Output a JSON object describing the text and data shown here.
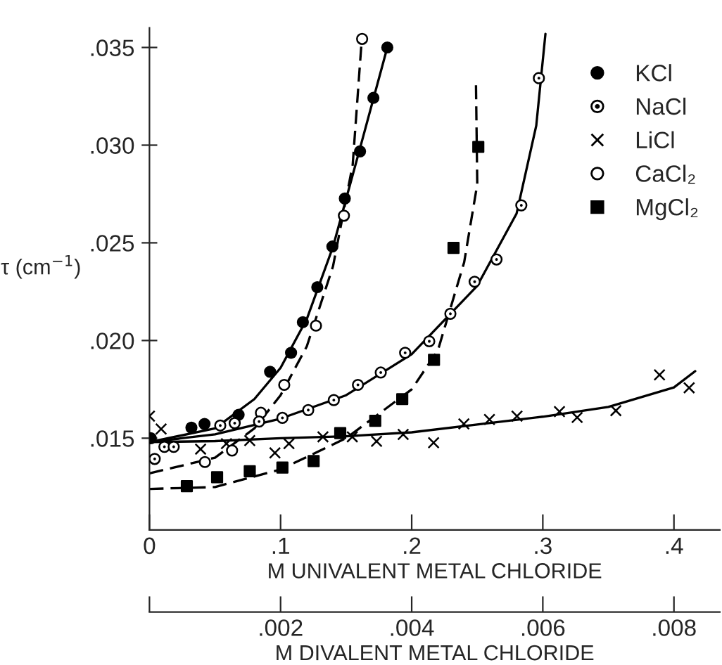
{
  "chart_data": {
    "type": "scatter",
    "xlabel": "M UNIVALENT METAL CHLORIDE",
    "ylabel": "τ (cm$^{−1}$)",
    "x2label": "M DIVALENT METAL CHLORIDE",
    "xlim": [
      0,
      0.435
    ],
    "xticks": [
      {
        "value": 0,
        "label": "0"
      },
      {
        "value": 0.1,
        "label": ".1"
      },
      {
        "value": 0.2,
        "label": ".2"
      },
      {
        "value": 0.3,
        "label": ".3"
      },
      {
        "value": 0.4,
        "label": ".4"
      }
    ],
    "x2lim": [
      0,
      0.0087
    ],
    "x2ticks": [
      {
        "value": 0,
        "label": null
      },
      {
        "value": 0.002,
        "label": ".002"
      },
      {
        "value": 0.004,
        "label": ".004"
      },
      {
        "value": 0.006,
        "label": ".006"
      },
      {
        "value": 0.008,
        "label": ".008"
      }
    ],
    "ylim": [
      0.0103,
      0.036
    ],
    "yticks": [
      {
        "value": 0.015,
        "label": ".015"
      },
      {
        "value": 0.02,
        "label": ".020"
      },
      {
        "value": 0.025,
        "label": ".025"
      },
      {
        "value": 0.03,
        "label": ".030"
      },
      {
        "value": 0.035,
        "label": ".035"
      }
    ],
    "legend": "top right",
    "grid": false,
    "series": [
      {
        "name": "KCl",
        "color": "#000000",
        "marker": "circle",
        "x": [
          0.001,
          0.032,
          0.042,
          0.068,
          0.092,
          0.108,
          0.117,
          0.128,
          0.1395,
          0.149,
          0.1606,
          0.1708,
          0.1814
        ],
        "values": [
          0.015,
          0.01554,
          0.01573,
          0.0162,
          0.0184,
          0.01937,
          0.02094,
          0.02273,
          0.02481,
          0.02727,
          0.02968,
          0.03242,
          0.035
        ]
      },
      {
        "name": "NaCl",
        "color": "#000000",
        "marker": "circle_dot",
        "x": [
          0.004,
          0.0114,
          0.0185,
          0.054,
          0.065,
          0.0836,
          0.1014,
          0.1211,
          0.1406,
          0.159,
          0.1764,
          0.195,
          0.2134,
          0.2295,
          0.248,
          0.2647,
          0.2836,
          0.297
        ],
        "values": [
          0.01394,
          0.01456,
          0.01456,
          0.01565,
          0.01577,
          0.01585,
          0.01604,
          0.01644,
          0.01695,
          0.01773,
          0.01836,
          0.01937,
          0.01996,
          0.02137,
          0.02301,
          0.02415,
          0.02692,
          0.03343
        ]
      },
      {
        "name": "LiCl",
        "color": "#000000",
        "marker": "cross",
        "x": [
          0,
          0.0089,
          0.039,
          0.0587,
          0.0765,
          0.0957,
          0.1064,
          0.1323,
          0.1547,
          0.1732,
          0.1935,
          0.2167,
          0.2398,
          0.2593,
          0.2803,
          0.3127,
          0.3262,
          0.3557,
          0.389,
          0.4116
        ],
        "values": [
          0.01613,
          0.01547,
          0.01444,
          0.01472,
          0.01488,
          0.01425,
          0.01472,
          0.01507,
          0.01507,
          0.01484,
          0.01519,
          0.01477,
          0.01573,
          0.01596,
          0.01613,
          0.01636,
          0.01606,
          0.01641,
          0.01824,
          0.01758
        ]
      },
      {
        "name": "CaCl₂",
        "color": "#000000",
        "marker": "circle_open",
        "x": [
          0.0423,
          0.063,
          0.085,
          0.1028,
          0.127,
          0.1483,
          0.1622
        ],
        "values": [
          0.01378,
          0.01437,
          0.0163,
          0.01773,
          0.02076,
          0.02639,
          0.03544
        ]
      },
      {
        "name": "MgCl₂",
        "color": "#000000",
        "marker": "square",
        "x": [
          0.0285,
          0.0516,
          0.0765,
          0.1014,
          0.1252,
          0.1455,
          0.1722,
          0.1928,
          0.217,
          0.2319,
          0.2508
        ],
        "values": [
          0.01254,
          0.013,
          0.01331,
          0.0135,
          0.01383,
          0.01526,
          0.01589,
          0.017,
          0.01901,
          0.02474,
          0.02991
        ]
      },
      {
        "type": "line",
        "color": "#000000",
        "line_style": "solid",
        "x": [
          0,
          0.05,
          0.08,
          0.1,
          0.12,
          0.14,
          0.16,
          0.1814
        ],
        "values": [
          0.0148,
          0.0155,
          0.017,
          0.0186,
          0.0211,
          0.0248,
          0.0297,
          0.035
        ]
      },
      {
        "type": "line",
        "color": "#000000",
        "line_style": "solid",
        "x": [
          0,
          0.05,
          0.1,
          0.15,
          0.2,
          0.25,
          0.28,
          0.295,
          0.302
        ],
        "values": [
          0.0148,
          0.0152,
          0.016,
          0.0172,
          0.0193,
          0.0228,
          0.0265,
          0.031,
          0.0357
        ]
      },
      {
        "type": "line",
        "color": "#000000",
        "line_style": "solid",
        "x": [
          0,
          0.05,
          0.1,
          0.15,
          0.2,
          0.25,
          0.3,
          0.35,
          0.4,
          0.4162
        ],
        "values": [
          0.0148,
          0.01485,
          0.015,
          0.0151,
          0.0153,
          0.0157,
          0.0161,
          0.0166,
          0.0176,
          0.01843
        ]
      },
      {
        "type": "line",
        "color": "#000000",
        "line_style": "dashed",
        "x": [
          0,
          0.05,
          0.08,
          0.1,
          0.12,
          0.14,
          0.155,
          0.162
        ],
        "values": [
          0.0132,
          0.014,
          0.0155,
          0.0172,
          0.0197,
          0.0238,
          0.029,
          0.0355
        ]
      },
      {
        "type": "line",
        "color": "#000000",
        "line_style": "dashed",
        "x": [
          0,
          0.05,
          0.1,
          0.15,
          0.2,
          0.22,
          0.24,
          0.25,
          0.249
        ],
        "values": [
          0.0124,
          0.0125,
          0.0134,
          0.015,
          0.0175,
          0.0195,
          0.024,
          0.028,
          0.03322
        ]
      }
    ]
  }
}
